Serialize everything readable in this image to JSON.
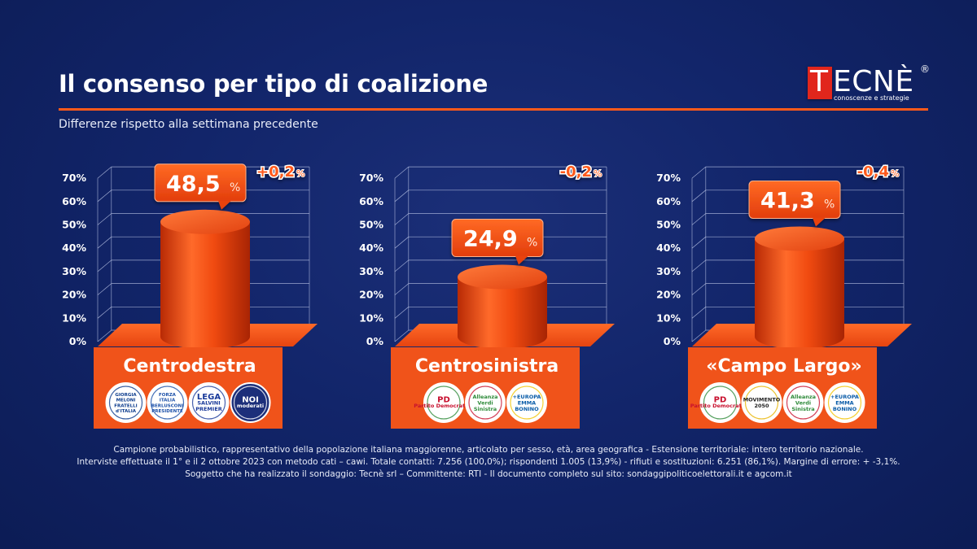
{
  "header": {
    "title": "Il consenso per tipo di coalizione",
    "subtitle": "Differenze rispetto alla settimana precedente"
  },
  "logo": {
    "initial": "T",
    "rest": "ECNÈ",
    "registered": "®",
    "tagline": "conoscenze e strategie"
  },
  "chart_data": [
    {
      "type": "bar",
      "categories": [
        "Centrodestra"
      ],
      "values": [
        48.5
      ],
      "value_label": "48,5",
      "unit": "%",
      "change": "+0,2",
      "ylim": [
        0,
        70
      ],
      "yticks": [
        "0%",
        "10%",
        "20%",
        "30%",
        "40%",
        "50%",
        "60%",
        "70%"
      ],
      "parties": [
        {
          "name": "Fratelli d'Italia - Giorgia Meloni",
          "lines": [
            "GIORGIA",
            "MELONI",
            "FRATELLI",
            "d'ITALIA"
          ],
          "icon": "fdi-logo"
        },
        {
          "name": "Forza Italia - Berlusconi",
          "lines": [
            "FORZA",
            "ITALIA",
            "BERLUSCONI",
            "PRESIDENTE"
          ],
          "icon": "fi-logo"
        },
        {
          "name": "Lega - Salvini Premier",
          "lines": [
            "LEGA",
            "SALVINI",
            "PREMIER"
          ],
          "icon": "lega-logo"
        },
        {
          "name": "Noi Moderati",
          "lines": [
            "NOI",
            "moderati"
          ],
          "icon": "noi-moderati-logo"
        }
      ]
    },
    {
      "type": "bar",
      "categories": [
        "Centrosinistra"
      ],
      "values": [
        24.9
      ],
      "value_label": "24,9",
      "unit": "%",
      "change": "-0,2",
      "ylim": [
        0,
        70
      ],
      "yticks": [
        "0%",
        "10%",
        "20%",
        "30%",
        "40%",
        "50%",
        "60%",
        "70%"
      ],
      "parties": [
        {
          "name": "Partito Democratico",
          "lines": [
            "PD",
            "Partito Democratico"
          ],
          "icon": "pd-logo"
        },
        {
          "name": "Alleanza Verdi Sinistra",
          "lines": [
            "Alleanza",
            "Verdi",
            "Sinistra"
          ],
          "icon": "avs-logo"
        },
        {
          "name": "+Europa - Emma Bonino",
          "lines": [
            "+EUROPA",
            "EMMA",
            "BONINO"
          ],
          "icon": "piu-europa-logo"
        }
      ]
    },
    {
      "type": "bar",
      "categories": [
        "«Campo Largo»"
      ],
      "values": [
        41.3
      ],
      "value_label": "41,3",
      "unit": "%",
      "change": "-0,4",
      "ylim": [
        0,
        70
      ],
      "yticks": [
        "0%",
        "10%",
        "20%",
        "30%",
        "40%",
        "50%",
        "60%",
        "70%"
      ],
      "parties": [
        {
          "name": "Partito Democratico",
          "lines": [
            "PD",
            "Partito Democratico"
          ],
          "icon": "pd-logo"
        },
        {
          "name": "MoVimento 5 Stelle",
          "lines": [
            "MOVIMENTO",
            "2050"
          ],
          "icon": "m5s-logo"
        },
        {
          "name": "Alleanza Verdi Sinistra",
          "lines": [
            "Alleanza",
            "Verdi",
            "Sinistra"
          ],
          "icon": "avs-logo"
        },
        {
          "name": "+Europa - Emma Bonino",
          "lines": [
            "+EUROPA",
            "EMMA",
            "BONINO"
          ],
          "icon": "piu-europa-logo"
        }
      ]
    }
  ],
  "footer": {
    "line1": "Campione probabilistico, rappresentativo della popolazione italiana maggiorenne, articolato per sesso, età, area geografica - Estensione territoriale: intero territorio nazionale.",
    "line2": "Interviste effettuate il 1° e il 2 ottobre 2023 con metodo cati – cawi. Totale contatti: 7.256 (100,0%); rispondenti 1.005 (13,9%) - rifiuti e sostituzioni: 6.251 (86,1%). Margine di errore: + -3,1%.",
    "line3": "Soggetto che ha realizzato il sondaggio: Tecnè srl – Committente: RTI - Il documento completo sul sito: sondaggipoliticoelettorali.it e agcom.it"
  },
  "colors": {
    "background": "#12256a",
    "accent": "#ff5a1a",
    "bar": "#e8400f",
    "base": "#f05218"
  }
}
